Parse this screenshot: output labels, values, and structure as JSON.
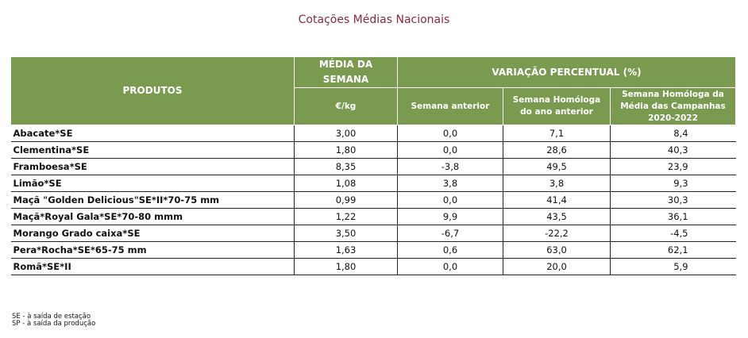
{
  "title": "Cotações Médias Nacionais",
  "table": {
    "headers": {
      "products": "PRODUTOS",
      "avg_week": "MÉDIA DA SEMANA",
      "unit": "€/kg",
      "variation": "VARIAÇÃO PERCENTUAL (%)",
      "prev_week": "Semana anterior",
      "prev_year": "Semana Homóloga do ano anterior",
      "campaign_avg": "Semana Homóloga da Média das Campanhas 2020-2022"
    },
    "rows": [
      {
        "product": "Abacate*SE",
        "price": "3,00",
        "prev_week": "0,0",
        "prev_year": "7,1",
        "campaign_avg": "8,4"
      },
      {
        "product": "Clementina*SE",
        "price": "1,80",
        "prev_week": "0,0",
        "prev_year": "28,6",
        "campaign_avg": "40,3"
      },
      {
        "product": "Framboesa*SE",
        "price": "8,35",
        "prev_week": "-3,8",
        "prev_year": "49,5",
        "campaign_avg": "23,9"
      },
      {
        "product": "Limão*SE",
        "price": "1,08",
        "prev_week": "3,8",
        "prev_year": "3,8",
        "campaign_avg": "9,3"
      },
      {
        "product": "Maçã \"Golden Delicious\"SE*II*70-75 mm",
        "price": "0,99",
        "prev_week": "0,0",
        "prev_year": "41,4",
        "campaign_avg": "30,3"
      },
      {
        "product": "Maçã*Royal Gala*SE*70-80 mmm",
        "price": "1,22",
        "prev_week": "9,9",
        "prev_year": "43,5",
        "campaign_avg": "36,1"
      },
      {
        "product": "Morango Grado caixa*SE",
        "price": "3,50",
        "prev_week": "-6,7",
        "prev_year": "-22,2",
        "campaign_avg": "-4,5"
      },
      {
        "product": "Pera*Rocha*SE*65-75 mm",
        "price": "1,63",
        "prev_week": "0,6",
        "prev_year": "63,0",
        "campaign_avg": "62,1"
      },
      {
        "product": "Romã*SE*II",
        "price": "1,80",
        "prev_week": "0,0",
        "prev_year": "20,0",
        "campaign_avg": "5,9"
      }
    ]
  },
  "footnotes": [
    "SE - à saída de estação",
    "SP - à saída da produção"
  ],
  "colors": {
    "header_bg": "#7a9a50",
    "title": "#8b2a3a"
  }
}
